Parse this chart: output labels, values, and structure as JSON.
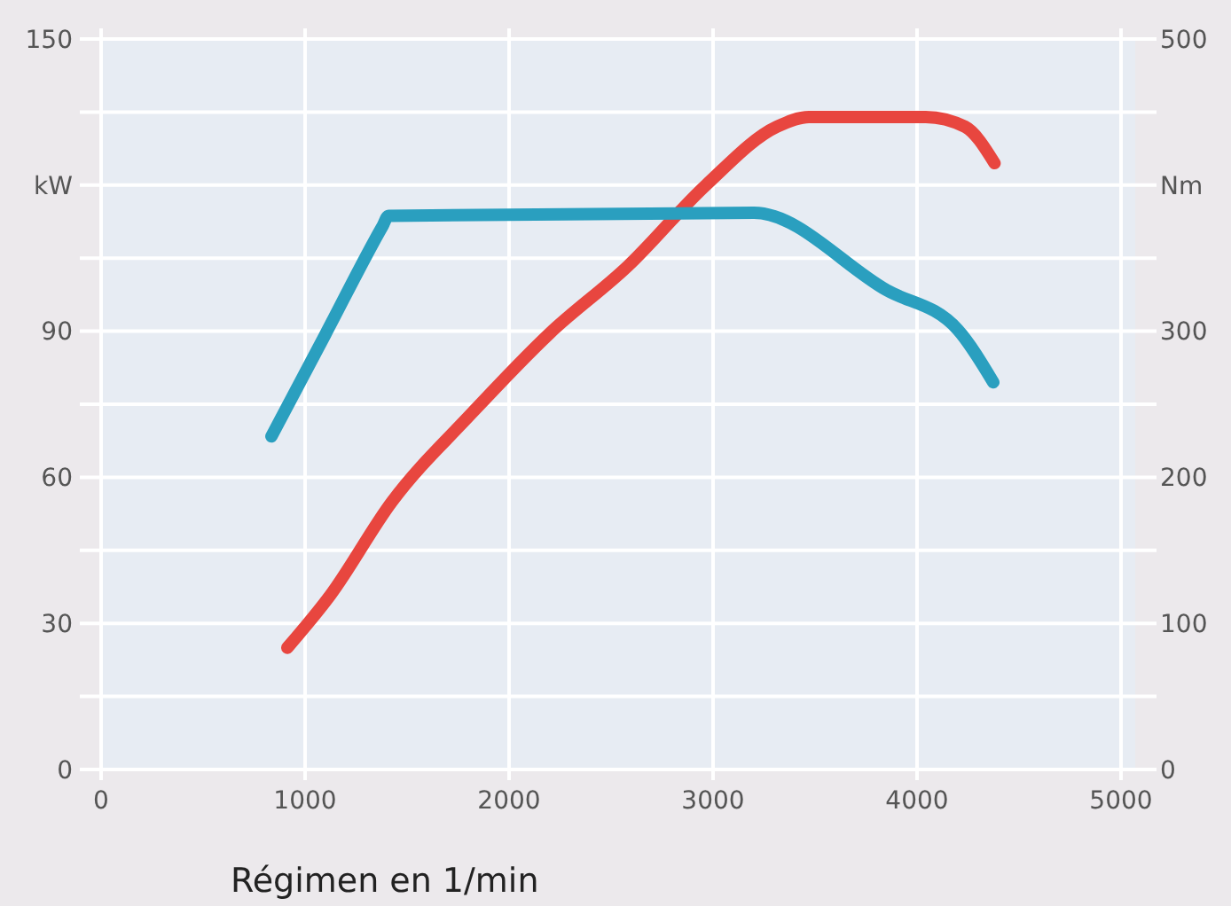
{
  "chart_data": {
    "type": "line",
    "xlabel": "Régimen en 1/min",
    "xlim": [
      0,
      5000
    ],
    "xticks": [
      0,
      1000,
      2000,
      3000,
      4000,
      5000
    ],
    "ylim": [
      0,
      150
    ],
    "yticks": [
      0,
      {
        "value": 15,
        "label": null
      },
      30,
      {
        "value": 45,
        "label": null
      },
      60,
      {
        "value": 75,
        "label": null
      },
      90,
      {
        "value": 105,
        "label": null
      },
      {
        "value": 120,
        "label": "kW"
      },
      {
        "value": 135,
        "label": null
      },
      150
    ],
    "y2lim": [
      0,
      500
    ],
    "y2ticks": [
      0,
      100,
      200,
      300,
      {
        "value": 400,
        "label": "Nm"
      },
      500
    ],
    "grid": true,
    "line_style": "solid",
    "marker": "none",
    "series": [
      {
        "color": "#e8463f",
        "x": [
          913,
          1122,
          1426,
          1809,
          2200,
          2583,
          2965,
          3313,
          3470,
          4043,
          4235,
          4380
        ],
        "values": [
          25,
          35.7,
          55,
          72.8,
          89.6,
          103.4,
          120,
          132,
          134,
          134,
          132,
          124.5
        ]
      },
      {
        "color": "#2a9fbf",
        "axis": "y2",
        "x": [
          835,
          1100,
          1380,
          1409,
          3200,
          3852,
          4200,
          4374
        ],
        "values": [
          228,
          298,
          372,
          379,
          381,
          328,
          301,
          265
        ]
      }
    ]
  }
}
